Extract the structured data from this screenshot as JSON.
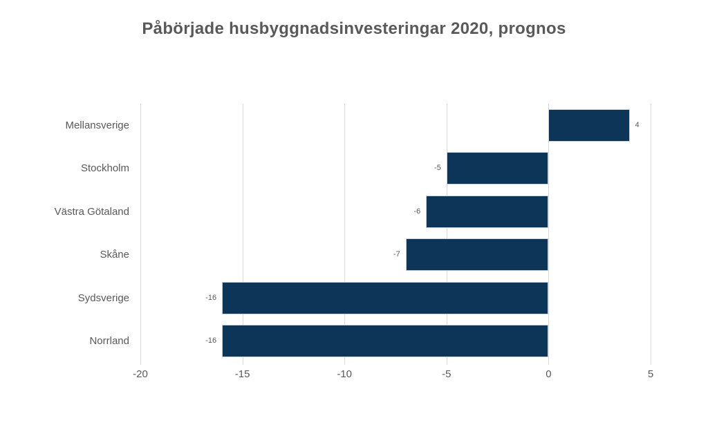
{
  "chart_data": {
    "type": "bar",
    "orientation": "horizontal",
    "title": "Påbörjade husbyggnadsinvesteringar 2020, prognos",
    "categories": [
      "Mellansverige",
      "Stockholm",
      "Västra Götaland",
      "Skåne",
      "Sydsverige",
      "Norrland"
    ],
    "values": [
      4,
      -5,
      -6,
      -7,
      -16,
      -16
    ],
    "data_labels": [
      "4",
      "-5",
      "-6",
      "-7",
      "-16",
      "-16"
    ],
    "x_ticks": [
      -20,
      -15,
      -10,
      -5,
      0,
      5
    ],
    "xlim": [
      -20,
      5
    ],
    "grid": true,
    "legend": false,
    "xlabel": "",
    "ylabel": "",
    "colors": {
      "bar": "#0d3557",
      "bar_border": "#c9d3dc",
      "text": "#595959",
      "gridline": "#d9d9d9",
      "background": "#ffffff"
    }
  }
}
